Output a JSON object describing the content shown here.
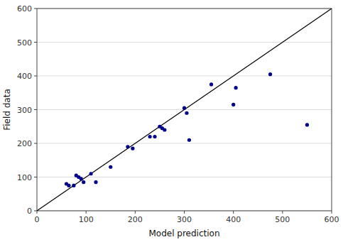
{
  "chart_data": {
    "type": "scatter",
    "xlabel": "Model prediction",
    "ylabel": "Field data",
    "series": [
      {
        "type": "line",
        "color": "#000000",
        "x": [
          0,
          600
        ],
        "values": [
          0,
          600
        ]
      },
      {
        "type": "scatter",
        "color": "#00008B",
        "marker": "circle",
        "x": [
          60,
          65,
          75,
          80,
          85,
          90,
          95,
          110,
          120,
          150,
          185,
          195,
          230,
          240,
          250,
          255,
          260,
          300,
          305,
          310,
          355,
          400,
          405,
          475,
          550
        ],
        "values": [
          80,
          75,
          75,
          105,
          100,
          95,
          85,
          110,
          85,
          130,
          190,
          185,
          220,
          220,
          250,
          245,
          240,
          305,
          290,
          210,
          375,
          315,
          365,
          405,
          255
        ]
      }
    ],
    "xlim": [
      0,
      600
    ],
    "ylim": [
      0,
      600
    ],
    "xticks": [
      0,
      100,
      200,
      300,
      400,
      500,
      600
    ],
    "yticks": [
      0,
      100,
      200,
      300,
      400,
      500,
      600
    ],
    "grid": "y"
  }
}
